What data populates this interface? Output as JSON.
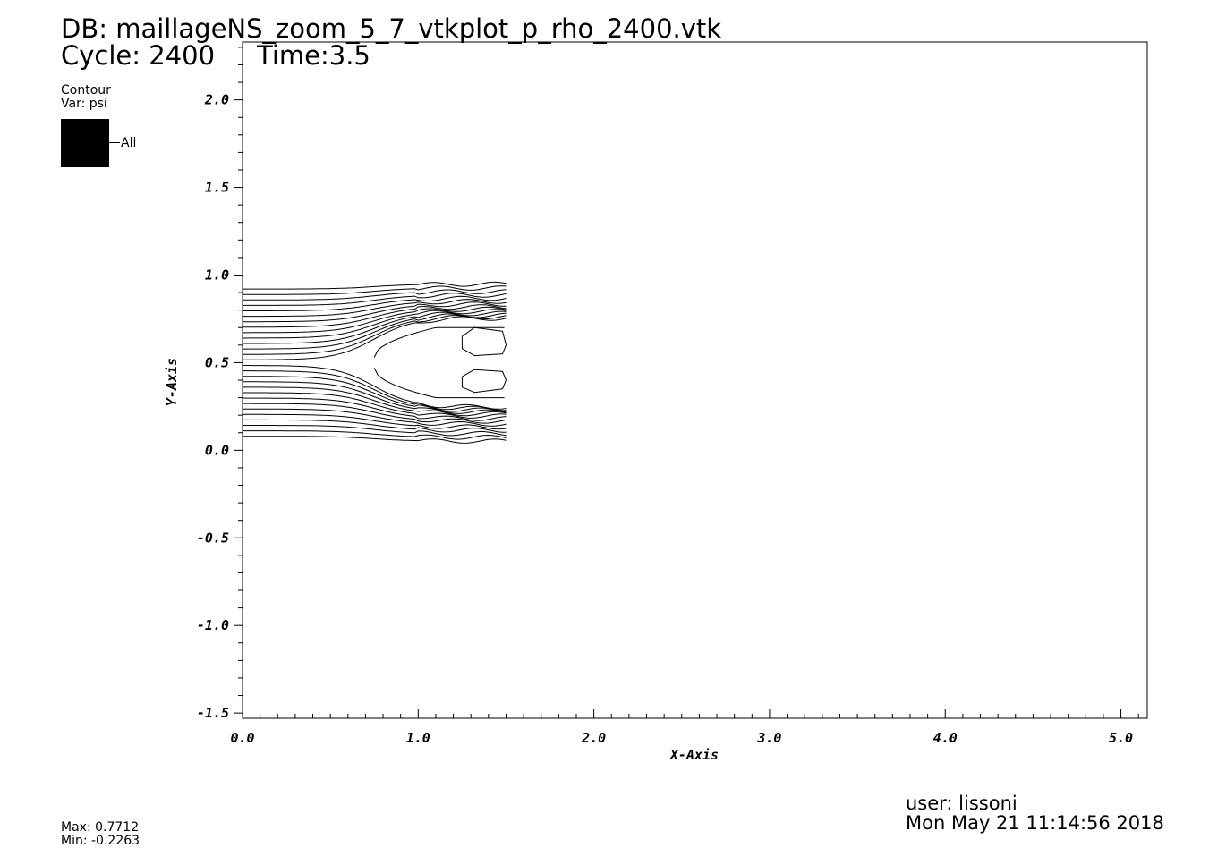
{
  "header": {
    "db": "DB: maillageNS_zoom_5_7_vtkplot_p_rho_2400.vtk",
    "cycle": "Cycle: 2400",
    "time": "Time:3.5"
  },
  "legend": {
    "title": "Contour",
    "var": "Var: psi",
    "entry": "All",
    "swatch_color": "#000000",
    "max": "Max:  0.7712",
    "min": "Min: -0.2263"
  },
  "footer": {
    "user": "user: lissoni",
    "date": "Mon May 21 11:14:56 2018"
  },
  "chart_data": {
    "type": "line",
    "title": "",
    "xlabel": "X-Axis",
    "ylabel": "Y-Axis",
    "xlim": [
      0.0,
      5.15
    ],
    "ylim": [
      -1.53,
      2.33
    ],
    "xticks": [
      "0.0",
      "1.0",
      "2.0",
      "3.0",
      "4.0",
      "5.0"
    ],
    "yticks": [
      "-1.5",
      "-1.0",
      "-0.5",
      "0.0",
      "0.5",
      "1.0",
      "1.5",
      "2.0"
    ],
    "grid": false,
    "line_color": "#000000",
    "streamline_count": 28,
    "domain": {
      "x": [
        0.0,
        1.5
      ],
      "y": [
        0.04,
        0.96
      ]
    },
    "stagnation_x": 0.75,
    "wake_center_y": 0.5,
    "series": [
      {
        "values": [
          [
            1.25,
            0.65
          ],
          [
            1.32,
            0.7
          ],
          [
            1.48,
            0.68
          ],
          [
            1.5,
            0.6
          ],
          [
            1.48,
            0.55
          ],
          [
            1.32,
            0.54
          ],
          [
            1.25,
            0.58
          ],
          [
            1.25,
            0.65
          ]
        ]
      },
      {
        "values": [
          [
            1.25,
            0.42
          ],
          [
            1.32,
            0.46
          ],
          [
            1.48,
            0.45
          ],
          [
            1.5,
            0.4
          ],
          [
            1.48,
            0.35
          ],
          [
            1.32,
            0.33
          ],
          [
            1.25,
            0.36
          ],
          [
            1.25,
            0.42
          ]
        ]
      }
    ]
  }
}
